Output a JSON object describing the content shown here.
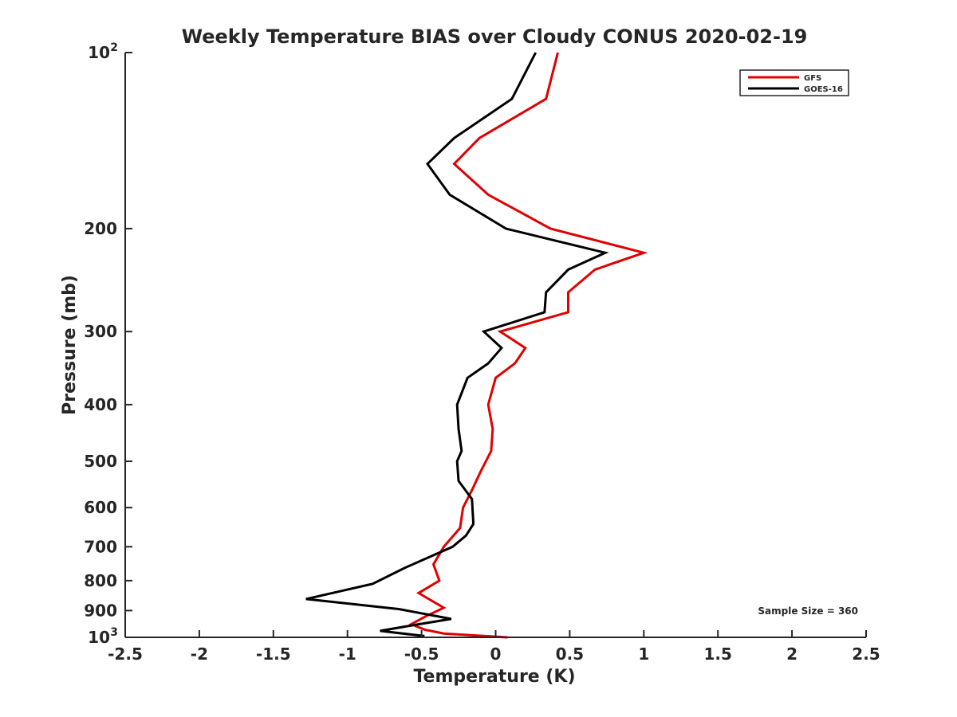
{
  "chart_data": {
    "type": "line",
    "title": "Weekly Temperature BIAS over Cloudy CONUS 2020-02-19",
    "xlabel": "Temperature (K)",
    "ylabel": "Pressure (mb)",
    "xlim": [
      -2.5,
      2.5
    ],
    "ylim": [
      100,
      1000
    ],
    "y_scale": "log",
    "y_reversed": true,
    "grid": false,
    "legend_position": "top-right",
    "x_ticks": [
      {
        "value": -2.5,
        "label": "-2.5"
      },
      {
        "value": -2,
        "label": "-2"
      },
      {
        "value": -1.5,
        "label": "-1.5"
      },
      {
        "value": -1,
        "label": "-1"
      },
      {
        "value": -0.5,
        "label": "-0.5"
      },
      {
        "value": 0,
        "label": "0"
      },
      {
        "value": 0.5,
        "label": "0.5"
      },
      {
        "value": 1,
        "label": "1"
      },
      {
        "value": 1.5,
        "label": "1.5"
      },
      {
        "value": 2,
        "label": "2"
      },
      {
        "value": 2.5,
        "label": "2.5"
      }
    ],
    "y_ticks": [
      {
        "value": 100,
        "label": "10",
        "exponent": "2"
      },
      {
        "value": 200,
        "label": "200"
      },
      {
        "value": 300,
        "label": "300"
      },
      {
        "value": 400,
        "label": "400"
      },
      {
        "value": 500,
        "label": "500"
      },
      {
        "value": 600,
        "label": "600"
      },
      {
        "value": 700,
        "label": "700"
      },
      {
        "value": 800,
        "label": "800"
      },
      {
        "value": 900,
        "label": "900"
      },
      {
        "value": 1000,
        "label": "10",
        "exponent": "3"
      }
    ],
    "annotation": "Sample Size = 360",
    "series": [
      {
        "name": "GFS",
        "color": "#e00000",
        "points": [
          {
            "t": 0.42,
            "p": 100
          },
          {
            "t": 0.34,
            "p": 120
          },
          {
            "t": -0.11,
            "p": 140
          },
          {
            "t": -0.28,
            "p": 155
          },
          {
            "t": -0.05,
            "p": 175
          },
          {
            "t": 0.37,
            "p": 200
          },
          {
            "t": 1.0,
            "p": 220
          },
          {
            "t": 0.67,
            "p": 235
          },
          {
            "t": 0.49,
            "p": 257
          },
          {
            "t": 0.49,
            "p": 278
          },
          {
            "t": 0.03,
            "p": 300
          },
          {
            "t": 0.2,
            "p": 320
          },
          {
            "t": 0.13,
            "p": 340
          },
          {
            "t": 0.0,
            "p": 360
          },
          {
            "t": -0.05,
            "p": 400
          },
          {
            "t": -0.02,
            "p": 440
          },
          {
            "t": -0.03,
            "p": 480
          },
          {
            "t": -0.1,
            "p": 520
          },
          {
            "t": -0.16,
            "p": 560
          },
          {
            "t": -0.22,
            "p": 600
          },
          {
            "t": -0.24,
            "p": 650
          },
          {
            "t": -0.35,
            "p": 700
          },
          {
            "t": -0.42,
            "p": 750
          },
          {
            "t": -0.38,
            "p": 800
          },
          {
            "t": -0.52,
            "p": 840
          },
          {
            "t": -0.35,
            "p": 890
          },
          {
            "t": -0.47,
            "p": 920
          },
          {
            "t": -0.57,
            "p": 950
          },
          {
            "t": -0.48,
            "p": 970
          },
          {
            "t": -0.35,
            "p": 985
          },
          {
            "t": 0.08,
            "p": 1000
          }
        ]
      },
      {
        "name": "GOES-16",
        "color": "#000000",
        "points": [
          {
            "t": 0.27,
            "p": 100
          },
          {
            "t": 0.11,
            "p": 120
          },
          {
            "t": -0.28,
            "p": 140
          },
          {
            "t": -0.46,
            "p": 155
          },
          {
            "t": -0.31,
            "p": 175
          },
          {
            "t": 0.07,
            "p": 200
          },
          {
            "t": 0.74,
            "p": 220
          },
          {
            "t": 0.49,
            "p": 235
          },
          {
            "t": 0.34,
            "p": 257
          },
          {
            "t": 0.33,
            "p": 278
          },
          {
            "t": -0.08,
            "p": 300
          },
          {
            "t": 0.04,
            "p": 320
          },
          {
            "t": -0.05,
            "p": 340
          },
          {
            "t": -0.19,
            "p": 360
          },
          {
            "t": -0.26,
            "p": 400
          },
          {
            "t": -0.25,
            "p": 440
          },
          {
            "t": -0.23,
            "p": 480
          },
          {
            "t": -0.26,
            "p": 500
          },
          {
            "t": -0.25,
            "p": 540
          },
          {
            "t": -0.16,
            "p": 580
          },
          {
            "t": -0.15,
            "p": 640
          },
          {
            "t": -0.2,
            "p": 670
          },
          {
            "t": -0.29,
            "p": 700
          },
          {
            "t": -0.61,
            "p": 760
          },
          {
            "t": -0.83,
            "p": 810
          },
          {
            "t": -1.28,
            "p": 860
          },
          {
            "t": -0.65,
            "p": 895
          },
          {
            "t": -0.3,
            "p": 930
          },
          {
            "t": -0.52,
            "p": 950
          },
          {
            "t": -0.78,
            "p": 975
          },
          {
            "t": -0.48,
            "p": 995
          }
        ]
      }
    ]
  }
}
